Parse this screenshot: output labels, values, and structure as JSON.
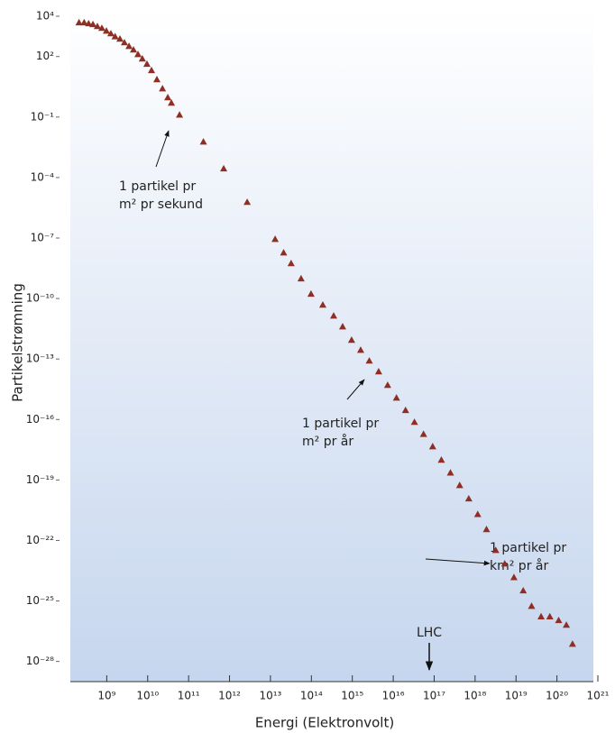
{
  "chart_data": {
    "type": "scatter",
    "x_label": "Energi (Elektronvolt)",
    "y_label": "Partikelstrømning",
    "x_scale": "log",
    "y_scale": "log",
    "marker_color": "#8e2f25",
    "x": [
      210000000.0,
      280000000.0,
      360000000.0,
      460000000.0,
      590000000.0,
      760000000.0,
      980000000.0,
      1260000000.0,
      1600000000.0,
      2100000000.0,
      2700000000.0,
      3500000000.0,
      4500000000.0,
      5800000000.0,
      7400000000.0,
      9600000000.0,
      12400000000.0,
      16800000000.0,
      23000000000.0,
      31000000000.0,
      38000000000.0,
      60000000000.0,
      230000000000.0,
      720000000000.0,
      2700000000000.0,
      13000000000000.0,
      21000000000000.0,
      32000000000000.0,
      56000000000000.0,
      98000000000000.0,
      190000000000000.0,
      350000000000000.0,
      580000000000000.0,
      960000000000000.0,
      1600000000000000.0,
      2600000000000000.0,
      4400000000000000.0,
      7300000000000000.0,
      1.2e+16,
      2e+16,
      3.3e+16,
      5.5e+16,
      9.2e+16,
      1.5e+17,
      2.5e+17,
      4.2e+17,
      7e+17,
      1.16e+18,
      1.9e+18,
      3.2e+18,
      5.3e+18,
      8.9e+18,
      1.5e+19,
      2.4e+19,
      4.1e+19,
      6.7e+19,
      1.1e+20,
      1.7e+20,
      2.4e+20
    ],
    "values": [
      4900,
      4900,
      4400,
      4000,
      3200,
      2600,
      1900,
      1400,
      1000,
      760,
      500,
      330,
      220,
      130,
      79,
      43,
      21,
      7.4,
      2.6,
      0.94,
      0.51,
      0.13,
      0.006,
      0.00028,
      6.1e-06,
      8.9e-08,
      1.9e-08,
      5.6e-09,
      9.8e-10,
      1.7e-10,
      4.9e-11,
      1.4e-11,
      4.1e-12,
      8.8e-13,
      2.8e-13,
      8.2e-14,
      2.4e-14,
      5.1e-15,
      1.2e-15,
      2.9e-16,
      7.5e-17,
      1.9e-17,
      4.6e-18,
      1e-18,
      2.3e-19,
      5.5e-20,
      1.2e-20,
      2e-21,
      3.6e-22,
      3.3e-23,
      7.1e-24,
      1.5e-24,
      3.3e-25,
      5.6e-26,
      1.7e-26,
      1.7e-26,
      1.1e-26,
      6.5e-27,
      7.4e-28
    ],
    "xlim": [
      100000000.0,
      1e+21
    ],
    "ylim": [
      1e-29,
      10000.0
    ],
    "xticks": [
      {
        "value": 1000000000.0,
        "label": "10⁹"
      },
      {
        "value": 10000000000.0,
        "label": "10¹⁰"
      },
      {
        "value": 100000000000.0,
        "label": "10¹¹"
      },
      {
        "value": 1000000000000.0,
        "label": "10¹²"
      },
      {
        "value": 10000000000000.0,
        "label": "10¹³"
      },
      {
        "value": 100000000000000.0,
        "label": "10¹⁴"
      },
      {
        "value": 1000000000000000.0,
        "label": "10¹⁵"
      },
      {
        "value": 1e+16,
        "label": "10¹⁶"
      },
      {
        "value": 1e+17,
        "label": "10¹⁷"
      },
      {
        "value": 1e+18,
        "label": "10¹⁸"
      },
      {
        "value": 1e+19,
        "label": "10¹⁹"
      },
      {
        "value": 1e+20,
        "label": "10²⁰"
      },
      {
        "value": 1e+21,
        "label": "10²¹"
      }
    ],
    "yticks": [
      {
        "value": 10000.0,
        "label": "10⁴"
      },
      {
        "value": 100.0,
        "label": "10²"
      },
      {
        "value": 0.1,
        "label": "10⁻¹"
      },
      {
        "value": 0.0001,
        "label": "10⁻⁴"
      },
      {
        "value": 1e-07,
        "label": "10⁻⁷"
      },
      {
        "value": 1e-10,
        "label": "10⁻¹⁰"
      },
      {
        "value": 1e-13,
        "label": "10⁻¹³"
      },
      {
        "value": 1e-16,
        "label": "10⁻¹⁶"
      },
      {
        "value": 1e-19,
        "label": "10⁻¹⁹"
      },
      {
        "value": 1e-22,
        "label": "10⁻²²"
      },
      {
        "value": 1e-25,
        "label": "10⁻²⁵"
      },
      {
        "value": 1e-28,
        "label": "10⁻²⁸"
      }
    ],
    "annotations": [
      {
        "lines": [
          "1 partikel pr",
          "m² pr sekund"
        ]
      },
      {
        "lines": [
          "1 partikel pr",
          "m² pr år"
        ]
      },
      {
        "lines": [
          "1 partikel pr",
          "km² pr år"
        ]
      },
      {
        "lines": [
          "LHC"
        ]
      }
    ]
  }
}
